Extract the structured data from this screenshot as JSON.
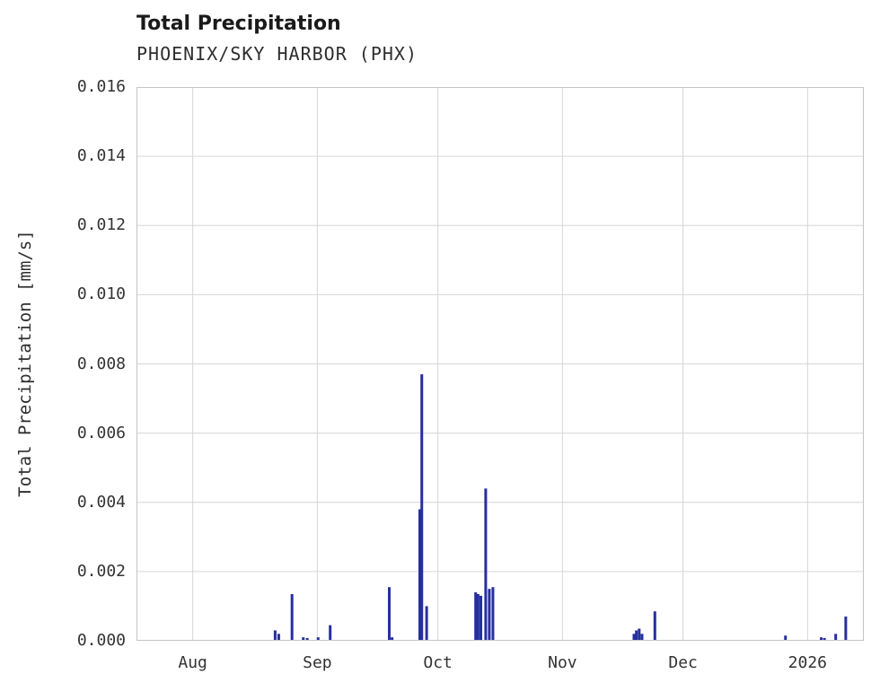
{
  "chart_data": {
    "type": "bar",
    "title": "Total Precipitation",
    "subtitle": "PHOENIX/SKY HARBOR (PHX)",
    "ylabel": "Total Precipitation [mm/s]",
    "xlabel": "",
    "ylim": [
      0,
      0.016
    ],
    "ytick_values": [
      0,
      0.002,
      0.004,
      0.006,
      0.008,
      0.01,
      0.012,
      0.014,
      0.016
    ],
    "ytick_labels": [
      "0.000",
      "0.002",
      "0.004",
      "0.006",
      "0.008",
      "0.010",
      "0.012",
      "0.014",
      "0.016"
    ],
    "x_domain_days": [
      0,
      181
    ],
    "xticks": [
      {
        "label": "Aug",
        "day": 14
      },
      {
        "label": "Sep",
        "day": 45
      },
      {
        "label": "Oct",
        "day": 75
      },
      {
        "label": "Nov",
        "day": 106
      },
      {
        "label": "Dec",
        "day": 136
      },
      {
        "label": "2026",
        "day": 167
      }
    ],
    "grid": true,
    "legend": "none",
    "colors": {
      "bar": "#262f9f",
      "grid": "#d6d6d6",
      "spine": "#c4c4c4",
      "title": "#1a1a1a",
      "text": "#333333"
    },
    "series": [
      {
        "name": "Total Precipitation",
        "points": [
          {
            "day": 34.5,
            "value": 0.0003
          },
          {
            "day": 35.4,
            "value": 0.0002
          },
          {
            "day": 38.7,
            "value": 0.00135
          },
          {
            "day": 41.5,
            "value": 0.0001
          },
          {
            "day": 42.5,
            "value": 8e-05
          },
          {
            "day": 45.2,
            "value": 0.0001
          },
          {
            "day": 48.2,
            "value": 0.00045
          },
          {
            "day": 62.9,
            "value": 0.00155
          },
          {
            "day": 63.6,
            "value": 0.0001
          },
          {
            "day": 70.5,
            "value": 0.0038
          },
          {
            "day": 71.0,
            "value": 0.0077
          },
          {
            "day": 72.2,
            "value": 0.001
          },
          {
            "day": 84.4,
            "value": 0.0014
          },
          {
            "day": 85.0,
            "value": 0.00135
          },
          {
            "day": 85.7,
            "value": 0.0013
          },
          {
            "day": 86.9,
            "value": 0.0044
          },
          {
            "day": 87.8,
            "value": 0.0015
          },
          {
            "day": 88.7,
            "value": 0.00155
          },
          {
            "day": 123.8,
            "value": 0.0002
          },
          {
            "day": 124.4,
            "value": 0.0003
          },
          {
            "day": 125.1,
            "value": 0.00035
          },
          {
            "day": 125.8,
            "value": 0.0002
          },
          {
            "day": 129.0,
            "value": 0.00085
          },
          {
            "day": 161.5,
            "value": 0.00015
          },
          {
            "day": 170.4,
            "value": 0.0001
          },
          {
            "day": 171.2,
            "value": 8e-05
          },
          {
            "day": 174.0,
            "value": 0.0002
          },
          {
            "day": 176.5,
            "value": 0.0007
          }
        ]
      }
    ]
  }
}
